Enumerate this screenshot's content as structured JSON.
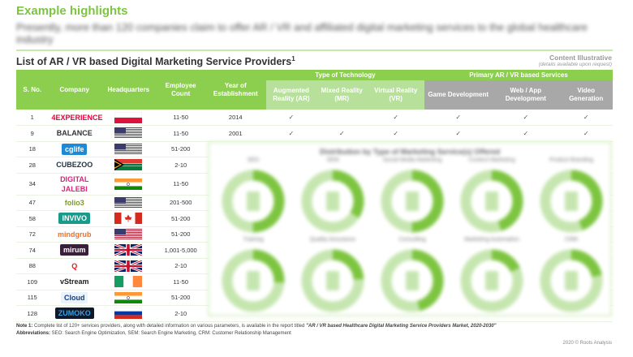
{
  "header": {
    "headline": "Example highlights",
    "intro": "Presently, more than 120 companies claim to offer AR / VR and affiliated digital marketing services to the global healthcare industry",
    "list_title": "List of AR / VR based Digital Marketing Service Providers",
    "list_title_sup": "1",
    "illustrative": "Content Illustrative",
    "illustrative_note": "(details available upon request)"
  },
  "table": {
    "group_headers": {
      "tech": "Type of Technology",
      "services": "Primary AR / VR based Services"
    },
    "columns": [
      "S. No.",
      "Company",
      "Headquarters",
      "Employee Count",
      "Year of Establishment",
      "Augmented Reality (AR)",
      "Mixed Reality (MR)",
      "Virtual Reality (VR)",
      "Game Development",
      "Web / App Development",
      "Video Generation"
    ],
    "check_glyph": "✓",
    "rows": [
      {
        "sno": "1",
        "company": "4EXPERIENCE",
        "logo_color": "#e4003a",
        "logo_bg": "#ffffff",
        "hq": "poland",
        "employees": "11-50",
        "year": "2014",
        "checks": [
          true,
          false,
          true,
          true,
          true,
          true
        ]
      },
      {
        "sno": "9",
        "company": "BALANCE",
        "logo_color": "#333333",
        "logo_bg": "#ffffff",
        "hq": "usa",
        "employees": "11-50",
        "year": "2001",
        "checks": [
          true,
          true,
          true,
          true,
          true,
          true
        ]
      },
      {
        "sno": "18",
        "company": "cglife",
        "logo_color": "#ffffff",
        "logo_bg": "#1e8ad6",
        "hq": "usa",
        "employees": "51-200"
      },
      {
        "sno": "28",
        "company": "CUBEZOO",
        "logo_color": "#223344",
        "logo_bg": "#ffffff",
        "hq": "south-africa",
        "employees": "2-10"
      },
      {
        "sno": "34",
        "company": "DIGITAL JALEBI",
        "logo_color": "#e0207a",
        "logo_bg": "#ffffff",
        "hq": "india",
        "employees": "11-50"
      },
      {
        "sno": "47",
        "company": "folio3",
        "logo_color": "#7a9a2a",
        "logo_bg": "#ffffff",
        "hq": "usa",
        "employees": "201-500"
      },
      {
        "sno": "58",
        "company": "INVIVO",
        "logo_color": "#ffffff",
        "logo_bg": "#1a9a8a",
        "hq": "canada",
        "employees": "51-200"
      },
      {
        "sno": "72",
        "company": "mindgrub",
        "logo_color": "#f07020",
        "logo_bg": "#ffffff",
        "hq": "usa",
        "employees": "51-200"
      },
      {
        "sno": "74",
        "company": "mirum",
        "logo_color": "#ffffff",
        "logo_bg": "#3a1f3a",
        "hq": "uk",
        "employees": "1,001-5,000"
      },
      {
        "sno": "88",
        "company": "Q",
        "logo_color": "#e02020",
        "logo_bg": "#ffffff",
        "hq": "uk",
        "employees": "2-10"
      },
      {
        "sno": "109",
        "company": "vStream",
        "logo_color": "#222222",
        "logo_bg": "#ffffff",
        "hq": "ireland",
        "employees": "11-50"
      },
      {
        "sno": "115",
        "company": "Cloud",
        "logo_color": "#1a3a7a",
        "logo_bg": "#e8f3fb",
        "hq": "india",
        "employees": "51-200"
      },
      {
        "sno": "128",
        "company": "ZUMOKO",
        "logo_color": "#3aa0e0",
        "logo_bg": "#111827",
        "hq": "russia",
        "employees": "2-10"
      }
    ]
  },
  "overlay": {
    "title": "Distribution by Type of Marketing Service(s) Offered",
    "blurred": true,
    "items": [
      {
        "label": "SEO",
        "icon": "mobile-icon",
        "fill": 0.5
      },
      {
        "label": "SEM",
        "icon": "monitor-icon",
        "fill": 0.34
      },
      {
        "label": "Social Media Marketing",
        "icon": "mobile-icon",
        "fill": 0.5
      },
      {
        "label": "Content Marketing",
        "icon": "keyboard-icon",
        "fill": 0.45
      },
      {
        "label": "Product Branding",
        "icon": "megaphone-icon",
        "fill": 0.44
      },
      {
        "label": "Training",
        "icon": "presentation-icon",
        "fill": 0.26
      },
      {
        "label": "Quality Assurance",
        "icon": "clipboard-icon",
        "fill": 0.24
      },
      {
        "label": "Consulting",
        "icon": "people-icon",
        "fill": 0.46
      },
      {
        "label": "Marketing Automation",
        "icon": "screen-icon",
        "fill": 0.18
      },
      {
        "label": "CRM",
        "icon": "group-icon",
        "fill": 0.22
      }
    ]
  },
  "footer": {
    "note_label": "Note 1:",
    "note_text": " Complete list of 120+ services providers, along with detailed information on various parameters, is available in the report titled ",
    "note_report": "\"AR / VR based Healthcare Digital Marketing Service Providers Market, 2020-2030\"",
    "abbr_label": "Abbreviations:",
    "abbr_text": " SEO: Search Engine Optimization, SEM: Search Engine Marketing, CRM: Customer Relationship Management",
    "copyright": "2020 © Roots Analysis"
  },
  "colors": {
    "accent": "#8ccf4f",
    "tech_sub": "#b7e19b",
    "service_sub": "#a8a8a8",
    "donut_light": "#c6e6b0",
    "donut_dark": "#7dc540"
  }
}
